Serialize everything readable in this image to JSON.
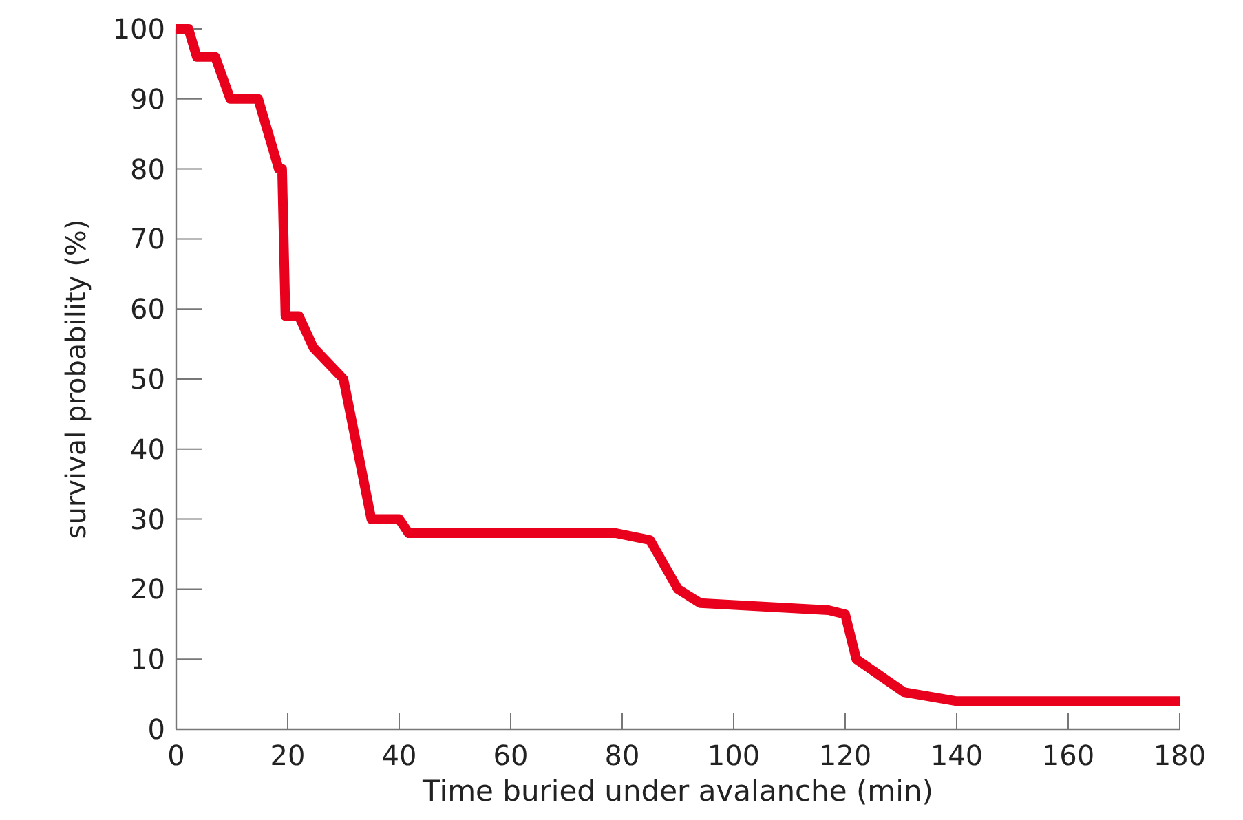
{
  "chart_data": {
    "type": "line",
    "xlabel": "Time buried under avalanche (min)",
    "ylabel": "survival probability (%)",
    "series": [
      {
        "color": "#e8001c",
        "x": [
          0,
          2.2,
          3.7,
          7,
          9.7,
          14.7,
          18.4,
          19,
          19.6,
          22,
          24.6,
          30,
          35,
          40,
          41.7,
          78.8,
          85,
          90,
          94,
          117,
          120,
          122,
          130.5,
          140,
          180
        ],
        "values": [
          100,
          100,
          96,
          96,
          90,
          90,
          80,
          80,
          59,
          59,
          54.5,
          50,
          30,
          30,
          28,
          28,
          27,
          20,
          18,
          17,
          16.4,
          10,
          5.3,
          4,
          4
        ]
      }
    ],
    "xlim": [
      0,
      180
    ],
    "xticks": [
      0,
      20,
      40,
      60,
      80,
      100,
      120,
      140,
      160,
      180
    ],
    "ylim": [
      0,
      100
    ],
    "yticks": [
      0,
      10,
      20,
      30,
      40,
      50,
      60,
      70,
      80,
      90,
      100
    ],
    "marker": "none",
    "line_style": "solid"
  }
}
